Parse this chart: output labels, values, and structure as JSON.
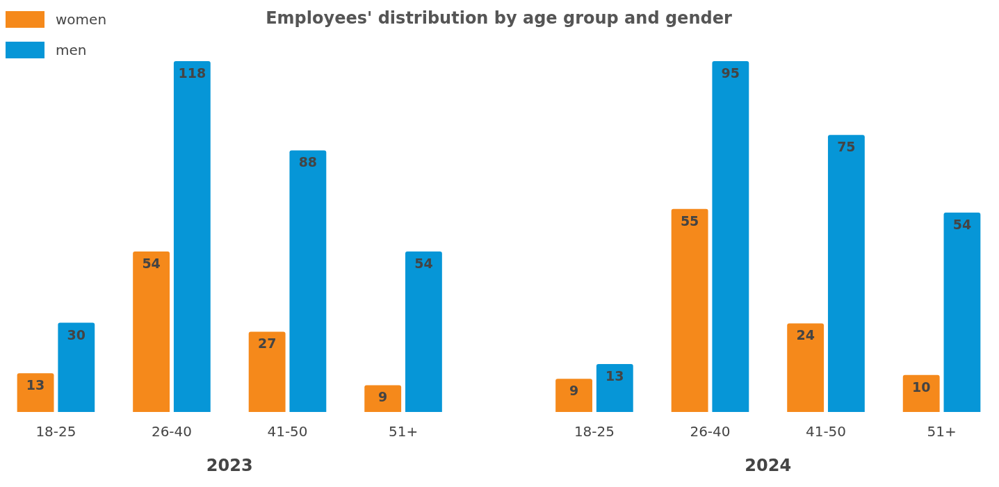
{
  "chart_data": [
    {
      "type": "bar",
      "title": "Employees' distribution by age group and gender",
      "xlabel": "2023",
      "categories": [
        "18-25",
        "26-40",
        "41-50",
        "51+"
      ],
      "legend": "top left",
      "data_labels": true,
      "series": [
        {
          "name": "women",
          "color": "#f5891b",
          "values": [
            13,
            54,
            27,
            9
          ]
        },
        {
          "name": "men",
          "color": "#0696d7",
          "values": [
            30,
            118,
            88,
            54
          ]
        }
      ]
    },
    {
      "type": "bar",
      "xlabel": "2024",
      "categories": [
        "18-25",
        "26-40",
        "41-50",
        "51+"
      ],
      "data_labels": true,
      "series": [
        {
          "color": "#f5891b",
          "values": [
            9,
            55,
            24,
            10
          ]
        },
        {
          "color": "#0696d7",
          "values": [
            13,
            95,
            75,
            54
          ]
        }
      ]
    }
  ]
}
